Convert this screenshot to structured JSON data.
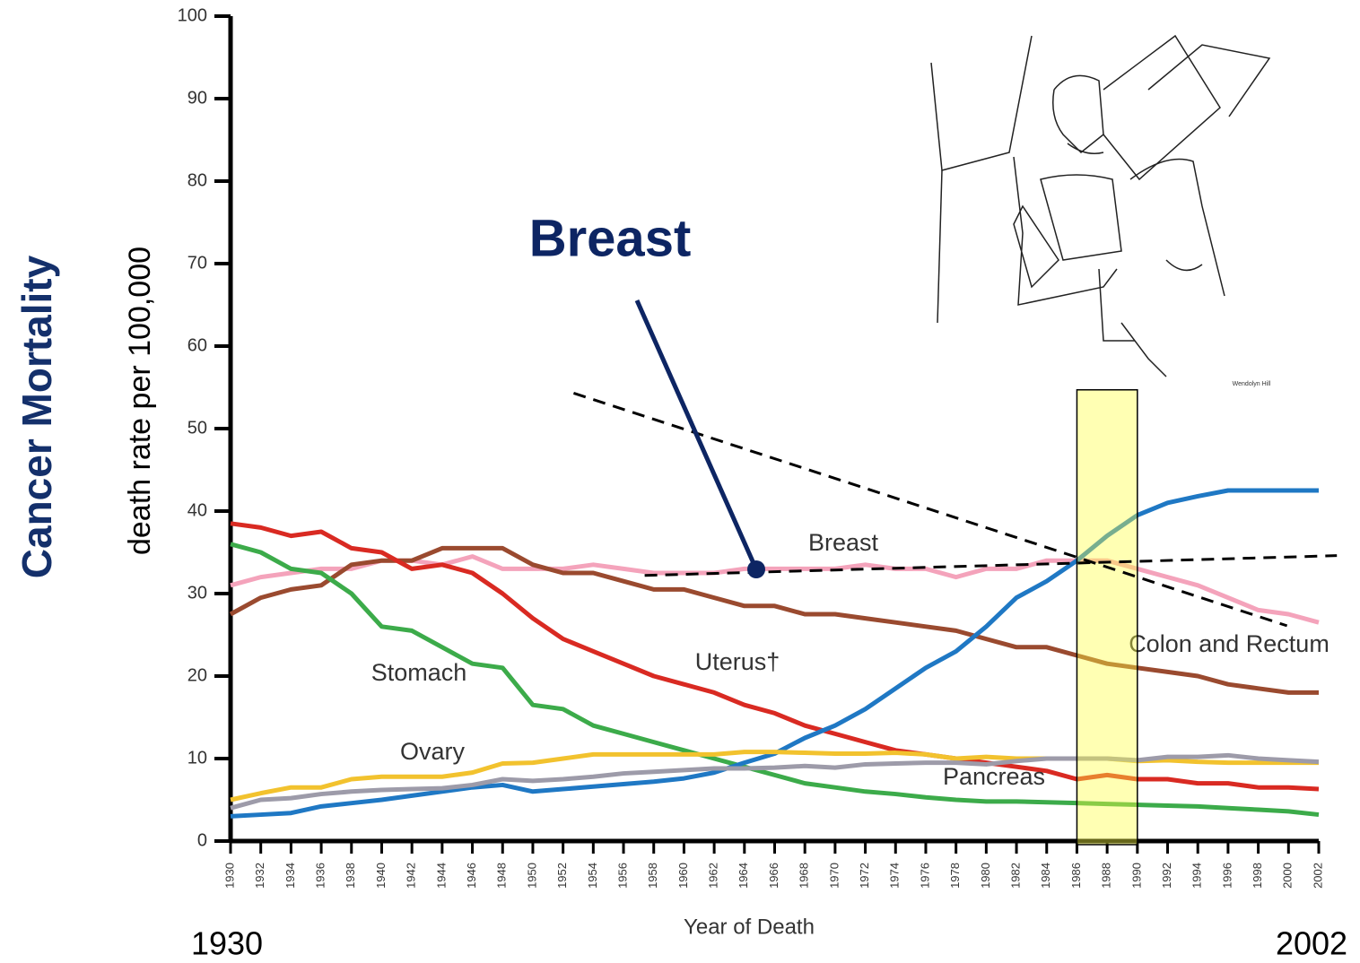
{
  "chart_data": {
    "type": "line",
    "headline": "Cancer Mortality",
    "y_label": "death rate per 100,000",
    "x_label": "Year of Death",
    "annotation": "Breast",
    "range_labels": [
      "1930",
      "2002"
    ],
    "illustration_credit": "Wendolyn Hill",
    "x": [
      1930,
      1932,
      1934,
      1936,
      1938,
      1940,
      1942,
      1944,
      1946,
      1948,
      1950,
      1952,
      1954,
      1956,
      1958,
      1960,
      1962,
      1964,
      1966,
      1968,
      1970,
      1972,
      1974,
      1976,
      1978,
      1980,
      1982,
      1984,
      1986,
      1988,
      1990,
      1992,
      1994,
      1996,
      1998,
      2000,
      2002
    ],
    "xlim": [
      1930,
      2002
    ],
    "ylim": [
      0,
      100
    ],
    "xticks": [
      1930,
      1932,
      1934,
      1936,
      1938,
      1940,
      1942,
      1944,
      1946,
      1948,
      1950,
      1952,
      1954,
      1956,
      1958,
      1960,
      1962,
      1964,
      1966,
      1968,
      1970,
      1972,
      1974,
      1976,
      1978,
      1980,
      1982,
      1984,
      1986,
      1988,
      1990,
      1992,
      1994,
      1996,
      1998,
      2000,
      2002
    ],
    "yticks": [
      0,
      10,
      20,
      30,
      40,
      50,
      60,
      70,
      80,
      90,
      100
    ],
    "series": [
      {
        "name": "Breast",
        "color": "#f4a3bb",
        "values": [
          31,
          32,
          32.5,
          33,
          33,
          34,
          34,
          33.5,
          34.5,
          33,
          33,
          33,
          33.5,
          33,
          32.5,
          32.5,
          32.5,
          33,
          33,
          33,
          33,
          33.5,
          33,
          33,
          32,
          33,
          33,
          34,
          34,
          34,
          33,
          32,
          31,
          29.5,
          28,
          27.5,
          26.5
        ]
      },
      {
        "name": "Colon and Rectum",
        "color": "#9a4a2f",
        "values": [
          27.5,
          29.5,
          30.5,
          31,
          33.5,
          34,
          34,
          35.5,
          35.5,
          35.5,
          33.5,
          32.5,
          32.5,
          31.5,
          30.5,
          30.5,
          29.5,
          28.5,
          28.5,
          27.5,
          27.5,
          27,
          26.5,
          26,
          25.5,
          24.5,
          23.5,
          23.5,
          22.5,
          21.5,
          21,
          20.5,
          20,
          19,
          18.5,
          18,
          18
        ]
      },
      {
        "name": "Uterus†",
        "color": "#d92a22",
        "values": [
          38.5,
          38,
          37,
          37.5,
          35.5,
          35,
          33,
          33.5,
          32.5,
          30,
          27,
          24.5,
          23,
          21.5,
          20,
          19,
          18,
          16.5,
          15.5,
          14,
          13,
          12,
          11,
          10.5,
          10,
          9.5,
          9,
          8.5,
          7.5,
          8,
          7.5,
          7.5,
          7,
          7,
          6.5,
          6.5,
          6.3
        ]
      },
      {
        "name": "Stomach",
        "color": "#3cab4a",
        "values": [
          36,
          35,
          33,
          32.5,
          30,
          26,
          25.5,
          23.5,
          21.5,
          21,
          16.5,
          16,
          14,
          13,
          12,
          11,
          10,
          9,
          8,
          7,
          6.5,
          6,
          5.7,
          5.3,
          5,
          4.8,
          4.8,
          4.7,
          4.6,
          4.5,
          4.4,
          4.3,
          4.2,
          4,
          3.8,
          3.6,
          3.2
        ]
      },
      {
        "color": "#1f78c4",
        "values": [
          3,
          3.2,
          3.4,
          4.2,
          4.6,
          5,
          5.5,
          6,
          6.5,
          6.8,
          6,
          6.3,
          6.6,
          6.9,
          7.2,
          7.6,
          8.3,
          9.5,
          10.6,
          12.5,
          14,
          16,
          18.5,
          21,
          23,
          26,
          29.5,
          31.5,
          34,
          37,
          39.5,
          41,
          41.8,
          42.5,
          42.5,
          42.5,
          42.5
        ]
      },
      {
        "name": "Ovary",
        "color": "#f2c22e",
        "values": [
          5,
          5.8,
          6.5,
          6.5,
          7.5,
          7.8,
          7.8,
          7.8,
          8.3,
          9.4,
          9.5,
          10,
          10.5,
          10.5,
          10.5,
          10.5,
          10.5,
          10.8,
          10.8,
          10.7,
          10.6,
          10.6,
          10.7,
          10.5,
          10,
          10.2,
          10,
          10,
          10,
          10,
          9.7,
          9.8,
          9.6,
          9.5,
          9.5,
          9.5,
          9.5
        ]
      },
      {
        "name": "Pancreas",
        "color": "#9d9ba9",
        "values": [
          4,
          5,
          5.2,
          5.7,
          6,
          6.2,
          6.3,
          6.4,
          6.8,
          7.5,
          7.3,
          7.5,
          7.8,
          8.2,
          8.4,
          8.6,
          8.8,
          8.8,
          8.9,
          9.1,
          8.9,
          9.3,
          9.4,
          9.5,
          9.5,
          9.3,
          9.7,
          10,
          10,
          10,
          9.8,
          10.2,
          10.2,
          10.4,
          10,
          9.8,
          9.6
        ]
      }
    ],
    "trend_lines": [
      {
        "x": [
          1952.7,
          1999.9
        ],
        "y": [
          54.3,
          26.1
        ]
      },
      {
        "x": [
          1957.4,
          2003.2
        ],
        "y": [
          32.2,
          34.6
        ]
      }
    ],
    "highlight": {
      "x": [
        1986,
        1990
      ],
      "y": [
        0,
        54.7
      ]
    }
  }
}
